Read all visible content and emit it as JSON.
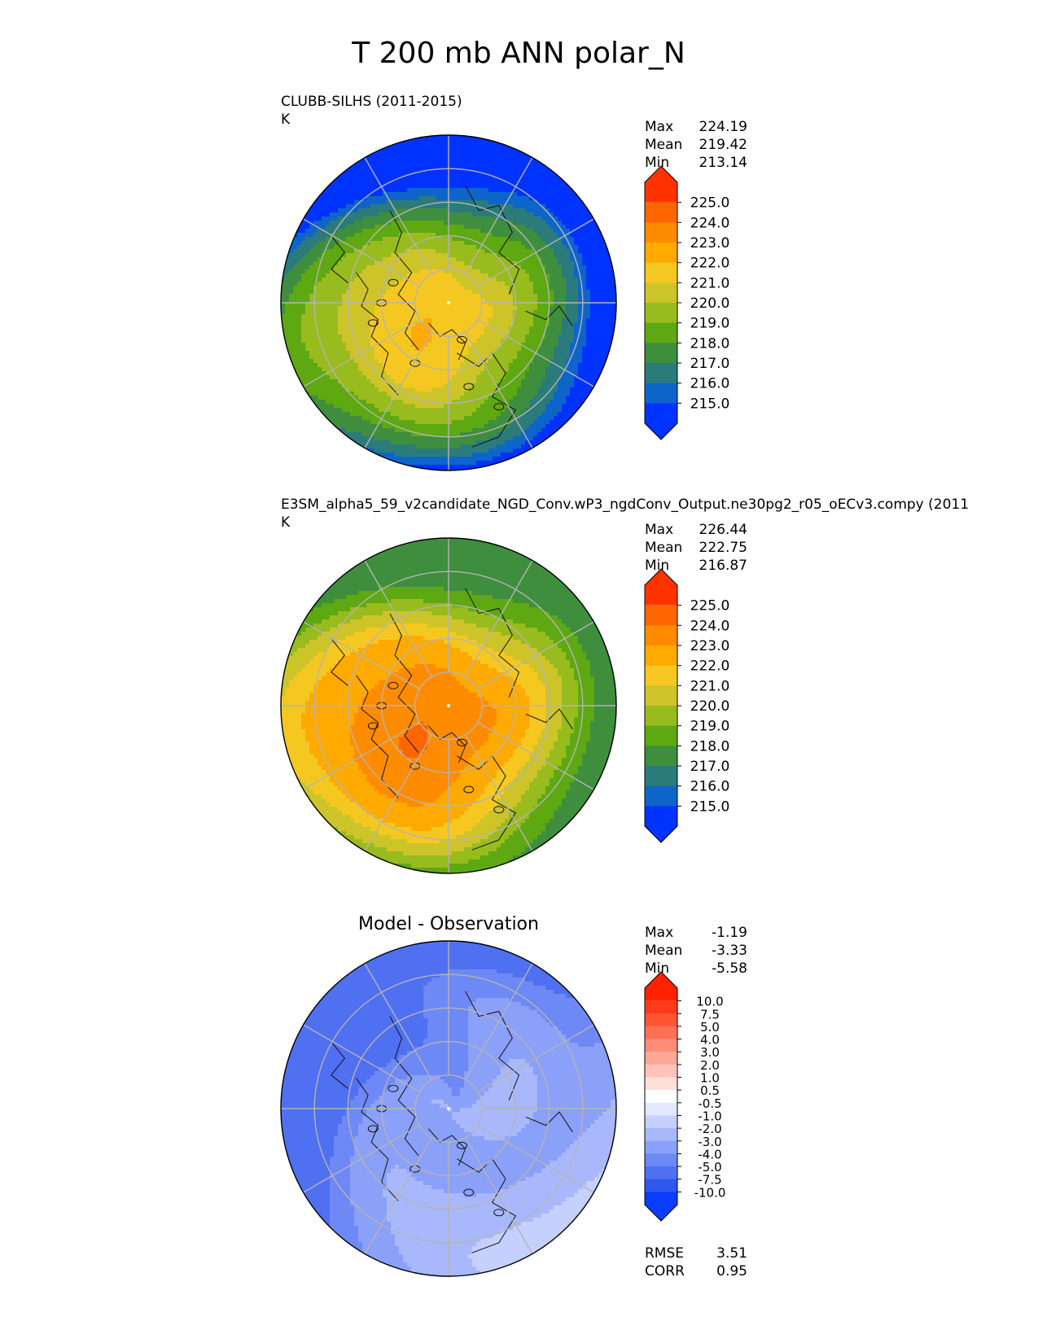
{
  "figure": {
    "title": "T 200 mb ANN polar_N"
  },
  "chart_data": [
    {
      "type": "heatmap",
      "projection": "north-polar-stereographic",
      "title": "CLUBB-SILHS (2011-2015)",
      "units": "K",
      "stats": {
        "max": "224.19",
        "mean": "219.42",
        "min": "213.14"
      },
      "stat_labels": [
        "Max",
        "Mean",
        "Min"
      ],
      "colorbar": {
        "ticks": [
          "225.0",
          "224.0",
          "223.0",
          "222.0",
          "221.0",
          "220.0",
          "219.0",
          "218.0",
          "217.0",
          "216.0",
          "215.0"
        ],
        "colors": [
          "#ff3300",
          "#ff6600",
          "#ff8c00",
          "#ffaa00",
          "#f5c821",
          "#cdc42a",
          "#98bb1e",
          "#5ea812",
          "#3e8e3e",
          "#2b7b7b",
          "#0e65c9",
          "#0033ff"
        ]
      },
      "field": {
        "bands": [
          [
            213.5,
            "#0033ff"
          ],
          [
            215.3,
            "#0e65c9"
          ],
          [
            216.2,
            "#2b7b7b"
          ],
          [
            217.2,
            "#3e8e3e"
          ],
          [
            218.2,
            "#5ea812"
          ],
          [
            219.2,
            "#98bb1e"
          ],
          [
            220.2,
            "#cdc42a"
          ],
          [
            221.0,
            "#f5c821"
          ],
          [
            222.0,
            "#ffaa00"
          ],
          [
            223.0,
            "#ff8c00"
          ],
          [
            224.0,
            "#ff6600"
          ]
        ]
      }
    },
    {
      "type": "heatmap",
      "projection": "north-polar-stereographic",
      "title": "E3SM_alpha5_59_v2candidate_NGD_Conv.wP3_ngdConv_Output.ne30pg2_r05_oECv3.compy (2011",
      "units": "K",
      "stats": {
        "max": "226.44",
        "mean": "222.75",
        "min": "216.87"
      },
      "stat_labels": [
        "Max",
        "Mean",
        "Min"
      ],
      "colorbar": {
        "ticks": [
          "225.0",
          "224.0",
          "223.0",
          "222.0",
          "221.0",
          "220.0",
          "219.0",
          "218.0",
          "217.0",
          "216.0",
          "215.0"
        ],
        "colors": [
          "#ff3300",
          "#ff6600",
          "#ff8c00",
          "#ffaa00",
          "#f5c821",
          "#cdc42a",
          "#98bb1e",
          "#5ea812",
          "#3e8e3e",
          "#2b7b7b",
          "#0e65c9",
          "#0033ff"
        ]
      },
      "field": {
        "bands": [
          [
            216.5,
            "#3e8e3e"
          ],
          [
            218.6,
            "#5ea812"
          ],
          [
            219.7,
            "#98bb1e"
          ],
          [
            220.5,
            "#cdc42a"
          ],
          [
            221.3,
            "#f5c821"
          ],
          [
            222.0,
            "#ffaa00"
          ],
          [
            223.0,
            "#ff8c00"
          ],
          [
            224.0,
            "#ff6600"
          ],
          [
            224.9,
            "#ff3300"
          ]
        ]
      }
    },
    {
      "type": "heatmap",
      "projection": "north-polar-stereographic",
      "title": "Model - Observation",
      "units": "",
      "stats": {
        "max": "-1.19",
        "mean": "-3.33",
        "min": "-5.58"
      },
      "stat_labels": [
        "Max",
        "Mean",
        "Min"
      ],
      "extra_stats": [
        {
          "label": "RMSE",
          "value": "3.51"
        },
        {
          "label": "CORR",
          "value": "0.95"
        }
      ],
      "colorbar": {
        "ticks": [
          "10.0",
          "7.5",
          "5.0",
          "4.0",
          "3.0",
          "2.0",
          "1.0",
          "0.5",
          "-0.5",
          "-1.0",
          "-2.0",
          "-3.0",
          "-4.0",
          "-5.0",
          "-7.5",
          "-10.0"
        ],
        "colors": [
          "#ff2200",
          "#ff3a1a",
          "#ff5535",
          "#ff7055",
          "#ff8c78",
          "#ffa898",
          "#ffc4b8",
          "#ffe0d8",
          "#ffffff",
          "#e2e8ff",
          "#c5d0fd",
          "#a8b8fb",
          "#8ba0f8",
          "#6e88f5",
          "#5070f2",
          "#3058ee",
          "#0a3dff"
        ]
      },
      "field": {
        "bands": [
          [
            -6.0,
            "#5070f2"
          ],
          [
            -4.3,
            "#6e88f5"
          ],
          [
            -3.6,
            "#8ba0f8"
          ],
          [
            -2.7,
            "#a8b8fb"
          ],
          [
            -1.7,
            "#c5d0fd"
          ]
        ]
      }
    }
  ]
}
